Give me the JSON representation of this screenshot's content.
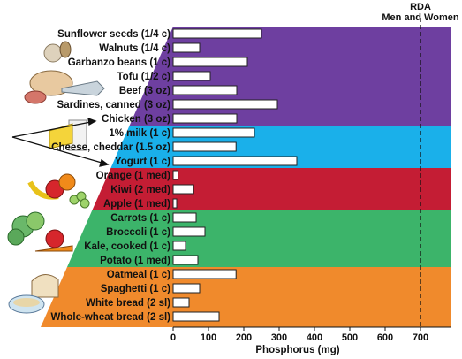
{
  "chart_data": {
    "type": "bar",
    "orientation": "horizontal",
    "xlabel": "Phosphorus (mg)",
    "ylabel": "",
    "xlim": [
      0,
      760
    ],
    "xticks": [
      0,
      100,
      200,
      300,
      400,
      500,
      600,
      700
    ],
    "categories": [
      "Sunflower seeds (1/4 c)",
      "Walnuts (1/4 c)",
      "Garbanzo beans (1 c)",
      "Tofu (1/2 c)",
      "Beef (3 oz)",
      "Sardines, canned (3 oz)",
      "Chicken (3 oz)",
      "1% milk (1 c)",
      "Cheese, cheddar (1.5 oz)",
      "Yogurt (1 c)",
      "Orange (1 med)",
      "Kiwi (2 med)",
      "Apple (1 med)",
      "Carrots (1 c)",
      "Broccoli (1 c)",
      "Kale, cooked (1 c)",
      "Potato (1 med)",
      "Oatmeal (1 c)",
      "Spaghetti (1 c)",
      "White bread (2 sl)",
      "Whole-wheat bread (2 sl)"
    ],
    "values": [
      250,
      75,
      210,
      105,
      180,
      295,
      180,
      230,
      178,
      350,
      14,
      58,
      10,
      65,
      90,
      35,
      70,
      178,
      75,
      45,
      130
    ],
    "groups": [
      {
        "color": "#6e3fa0",
        "start": 0,
        "end": 6
      },
      {
        "color": "#1ab0ea",
        "start": 7,
        "end": 9
      },
      {
        "color": "#c41d34",
        "start": 10,
        "end": 12
      },
      {
        "color": "#3cb46a",
        "start": 13,
        "end": 16
      },
      {
        "color": "#f08a2c",
        "start": 17,
        "end": 20
      }
    ],
    "reference_line": {
      "value": 700,
      "label_line1": "RDA",
      "label_line2": "Men and Women"
    },
    "bar_color": "#ffffff"
  }
}
